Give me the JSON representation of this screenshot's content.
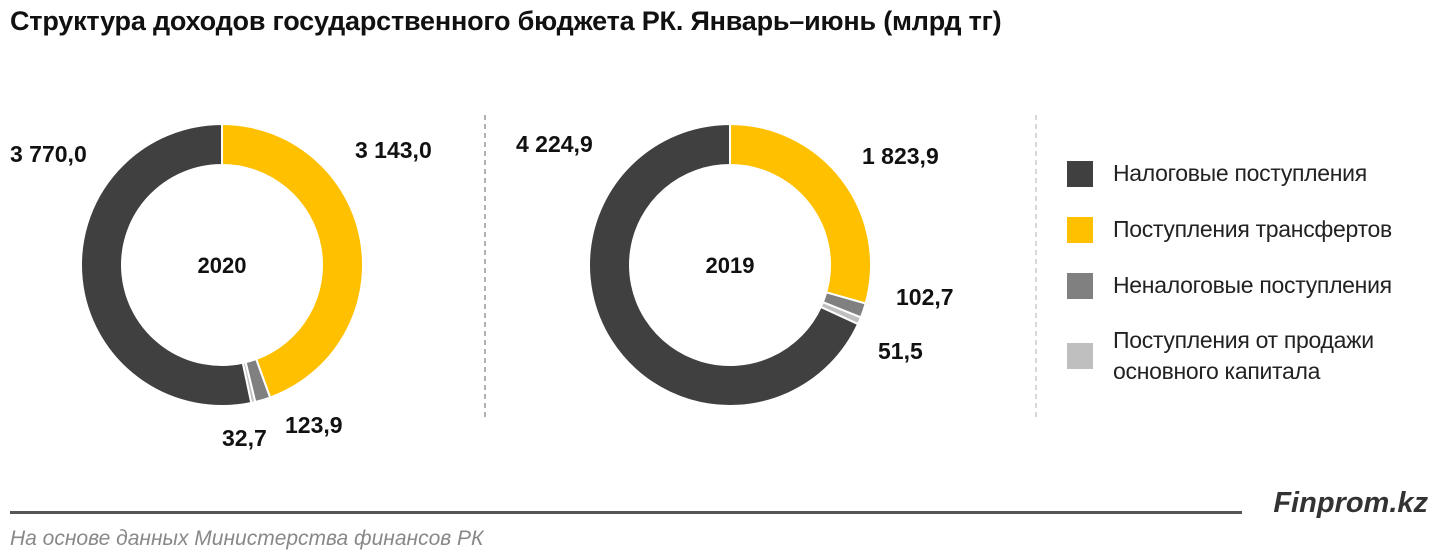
{
  "title": "Структура доходов государственного бюджета РК. Январь–июнь  (млрд тг)",
  "chart_data": [
    {
      "type": "pie",
      "center_label": "2020",
      "categories": [
        "Налоговые поступления",
        "Поступления трансфертов",
        "Неналоговые поступления",
        "Поступления от продажи основного капитала"
      ],
      "values": [
        3770.0,
        3143.0,
        123.9,
        32.7
      ],
      "value_labels": [
        "3 770,0",
        "3 143,0",
        "123,9",
        "32,7"
      ]
    },
    {
      "type": "pie",
      "center_label": "2019",
      "categories": [
        "Налоговые поступления",
        "Поступления трансфертов",
        "Неналоговые поступления",
        "Поступления от продажи основного капитала"
      ],
      "values": [
        4224.9,
        1823.9,
        102.7,
        51.5
      ],
      "value_labels": [
        "4 224,9",
        "1 823,9",
        "102,7",
        "51,5"
      ]
    }
  ],
  "colors": [
    "#404040",
    "#FFC000",
    "#808080",
    "#BFBFBF"
  ],
  "legend": [
    {
      "label": "Налоговые поступления"
    },
    {
      "label": "Поступления трансфертов"
    },
    {
      "label": "Неналоговые поступления"
    },
    {
      "label": "Поступления от продажи основного капитала"
    }
  ],
  "brand": "Finprom.kz",
  "source": "На основе данных  Министерства финансов  РК"
}
